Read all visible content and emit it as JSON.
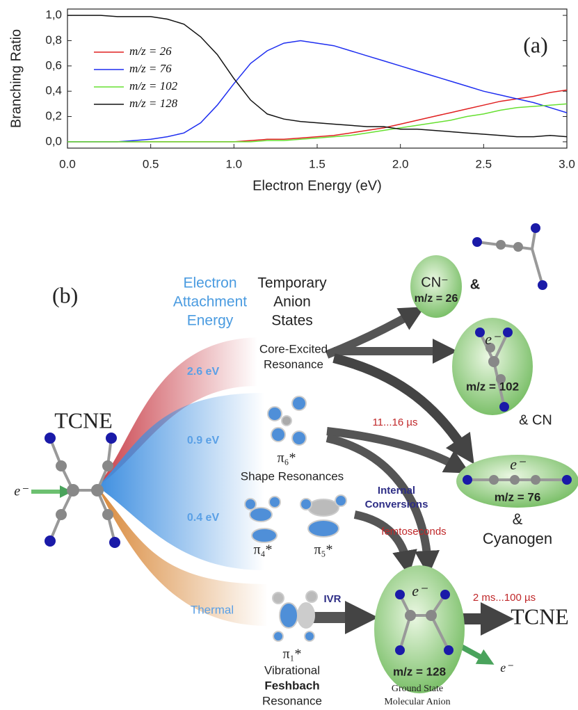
{
  "chart_data": {
    "type": "line",
    "annotation": "(a)",
    "xlabel": "Electron Energy (eV)",
    "ylabel": "Branching Ratio",
    "x": [
      0,
      0.1,
      0.2,
      0.3,
      0.4,
      0.5,
      0.6,
      0.7,
      0.8,
      0.9,
      1.0,
      1.1,
      1.2,
      1.3,
      1.4,
      1.5,
      1.6,
      1.7,
      1.8,
      1.9,
      2.0,
      2.1,
      2.2,
      2.3,
      2.4,
      2.5,
      2.6,
      2.7,
      2.8,
      2.9,
      3.0
    ],
    "series": [
      {
        "name": "m/z = 26",
        "color": "#e02020",
        "values": [
          0,
          0,
          0,
          0,
          0,
          0,
          0,
          0,
          0,
          0,
          0,
          0.01,
          0.02,
          0.02,
          0.03,
          0.04,
          0.05,
          0.07,
          0.09,
          0.11,
          0.14,
          0.17,
          0.2,
          0.23,
          0.26,
          0.29,
          0.32,
          0.34,
          0.36,
          0.39,
          0.41
        ]
      },
      {
        "name": "m/z = 76",
        "color": "#1e2ef0",
        "values": [
          0,
          0,
          0,
          0,
          0.01,
          0.02,
          0.04,
          0.07,
          0.15,
          0.29,
          0.46,
          0.62,
          0.72,
          0.78,
          0.8,
          0.78,
          0.76,
          0.72,
          0.68,
          0.64,
          0.6,
          0.56,
          0.52,
          0.48,
          0.44,
          0.4,
          0.37,
          0.34,
          0.31,
          0.27,
          0.23
        ]
      },
      {
        "name": "m/z = 102",
        "color": "#66e030",
        "values": [
          0,
          0,
          0,
          0,
          0,
          0,
          0,
          0,
          0,
          0,
          0,
          0,
          0.01,
          0.01,
          0.02,
          0.03,
          0.04,
          0.05,
          0.07,
          0.09,
          0.11,
          0.13,
          0.15,
          0.17,
          0.2,
          0.22,
          0.25,
          0.27,
          0.28,
          0.29,
          0.3
        ]
      },
      {
        "name": "m/z = 128",
        "color": "#111111",
        "values": [
          1,
          1,
          1,
          0.99,
          0.99,
          0.99,
          0.97,
          0.93,
          0.83,
          0.69,
          0.5,
          0.33,
          0.22,
          0.18,
          0.16,
          0.15,
          0.14,
          0.13,
          0.12,
          0.12,
          0.1,
          0.1,
          0.09,
          0.08,
          0.07,
          0.06,
          0.05,
          0.04,
          0.04,
          0.05,
          0.04
        ]
      }
    ],
    "xlim": [
      0,
      3
    ],
    "ylim": [
      -0.05,
      1.05
    ],
    "xticks": [
      {
        "value": 0,
        "label": "0.0"
      },
      {
        "value": 0.5,
        "label": "0.5"
      },
      {
        "value": 1,
        "label": "1.0"
      },
      {
        "value": 1.5,
        "label": "1.5"
      },
      {
        "value": 2,
        "label": "2.0"
      },
      {
        "value": 2.5,
        "label": "2.5"
      },
      {
        "value": 3,
        "label": "3.0"
      }
    ],
    "yticks": [
      {
        "value": 0,
        "label": "0,0"
      },
      {
        "value": 0.2,
        "label": "0,2"
      },
      {
        "value": 0.4,
        "label": "0,4"
      },
      {
        "value": 0.6,
        "label": "0,6"
      },
      {
        "value": 0.8,
        "label": "0,8"
      },
      {
        "value": 1,
        "label": "1,0"
      }
    ]
  },
  "diagram": {
    "label": "(b)",
    "energy_header": [
      "Electron",
      "Attachment",
      "Energy"
    ],
    "states_header": [
      "Temporary",
      "Anion",
      "States"
    ],
    "reactant": "TCNE",
    "electron_in": "e⁻",
    "resonances": [
      {
        "energy": "2.6 eV",
        "name": [
          "Core-Excited",
          "Resonance"
        ]
      },
      {
        "energy": "0.9 eV",
        "orbitals": [
          "π₆*"
        ],
        "name": [
          "Shape Resonances"
        ]
      },
      {
        "energy": "0.4 eV",
        "orbitals": [
          "π₄*",
          "π₅*"
        ]
      },
      {
        "energy": "Thermal",
        "orbitals": [
          "π₁*"
        ],
        "name": [
          "Vibrational",
          "Feshbach",
          "Resonance"
        ]
      }
    ],
    "processes": {
      "delayed": "11...16 µs",
      "internal_conversions": [
        "Internal",
        "Conversions"
      ],
      "ic_time": "femtoseconds",
      "ivr": "IVR",
      "detachment_time": "2 ms...100 µs"
    },
    "products": [
      {
        "ion": "CN⁻",
        "mz": "m/z = 26",
        "partner": "&"
      },
      {
        "electron": "e⁻",
        "mz": "m/z = 102",
        "partner": "& CN"
      },
      {
        "electron": "e⁻",
        "mz": "m/z = 76",
        "partner": [
          "&",
          "Cyanogen"
        ]
      },
      {
        "electron": "e⁻",
        "mz": "m/z = 128",
        "caption": [
          "Ground State",
          "Molecular Anion"
        ]
      }
    ],
    "neutral": "TCNE",
    "electron_out": "e⁻"
  }
}
